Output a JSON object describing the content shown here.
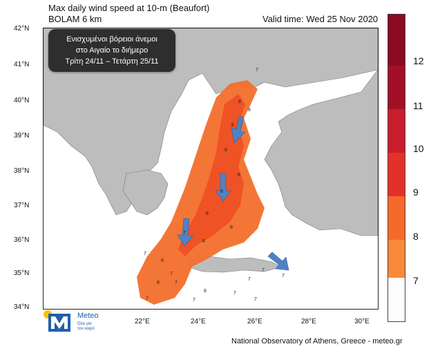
{
  "title": {
    "line1": "Max daily wind speed at 10-m (Beaufort)",
    "line2": "BOLAM 6 km",
    "valid": "Valid time: Wed 25 Nov 2020"
  },
  "callout": {
    "line1": "Ενισχυμένοι βόρειοι άνεμοι",
    "line2": "στο Αιγαίο το διήμερο",
    "line3": "Τρίτη 24/11 – Τετάρτη 25/11"
  },
  "axes": {
    "lat_labels": [
      "42°N",
      "41°N",
      "40°N",
      "39°N",
      "38°N",
      "37°N",
      "36°N",
      "35°N",
      "34°N"
    ],
    "lon_labels": [
      "22°E",
      "24°E",
      "26°E",
      "28°E",
      "30°E"
    ]
  },
  "legend": {
    "labels": [
      "12",
      "11",
      "10",
      "9",
      "8",
      "7"
    ],
    "colors": {
      "7": "#fdfdfd",
      "8": "#f88a3a",
      "9": "#f46a2a",
      "10": "#e3312a",
      "11": "#c81d2c",
      "12": "#a20f27",
      "top": "#8a0b23"
    }
  },
  "map_colors": {
    "land": "#bdbdbd",
    "sea": "#ffffff",
    "bft8": "#f36f2b",
    "bft9": "#ee4f22",
    "arrow": "#4f82c4"
  },
  "contour_labels": [
    "7",
    "8",
    "8",
    "8",
    "8",
    "8",
    "8",
    "8",
    "8",
    "7",
    "7",
    "8",
    "7",
    "8",
    "7",
    "7",
    "8",
    "7",
    "7",
    "7",
    "7",
    "8",
    "7",
    "7"
  ],
  "footer": "National Observatory of Athens, Greece - meteo.gr",
  "logo": {
    "name": "Meteo",
    "tagline_1": "Όλα για",
    "tagline_2": "τον καιρό"
  }
}
